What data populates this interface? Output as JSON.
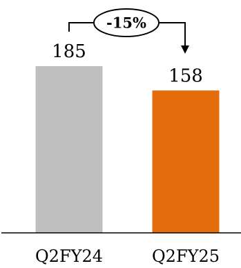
{
  "chart_data": {
    "type": "bar",
    "categories": [
      "Q2FY24",
      "Q2FY25"
    ],
    "values": [
      185,
      158
    ],
    "colors": [
      "#BFBFBF",
      "#E46C0A"
    ],
    "data_labels": [
      "185",
      "158"
    ],
    "annotation": {
      "text": "-15%",
      "from": "Q2FY24",
      "to": "Q2FY25"
    },
    "title": "",
    "xlabel": "",
    "ylabel": "",
    "ylim": [
      0,
      185
    ],
    "grid": false,
    "legend": "none"
  }
}
